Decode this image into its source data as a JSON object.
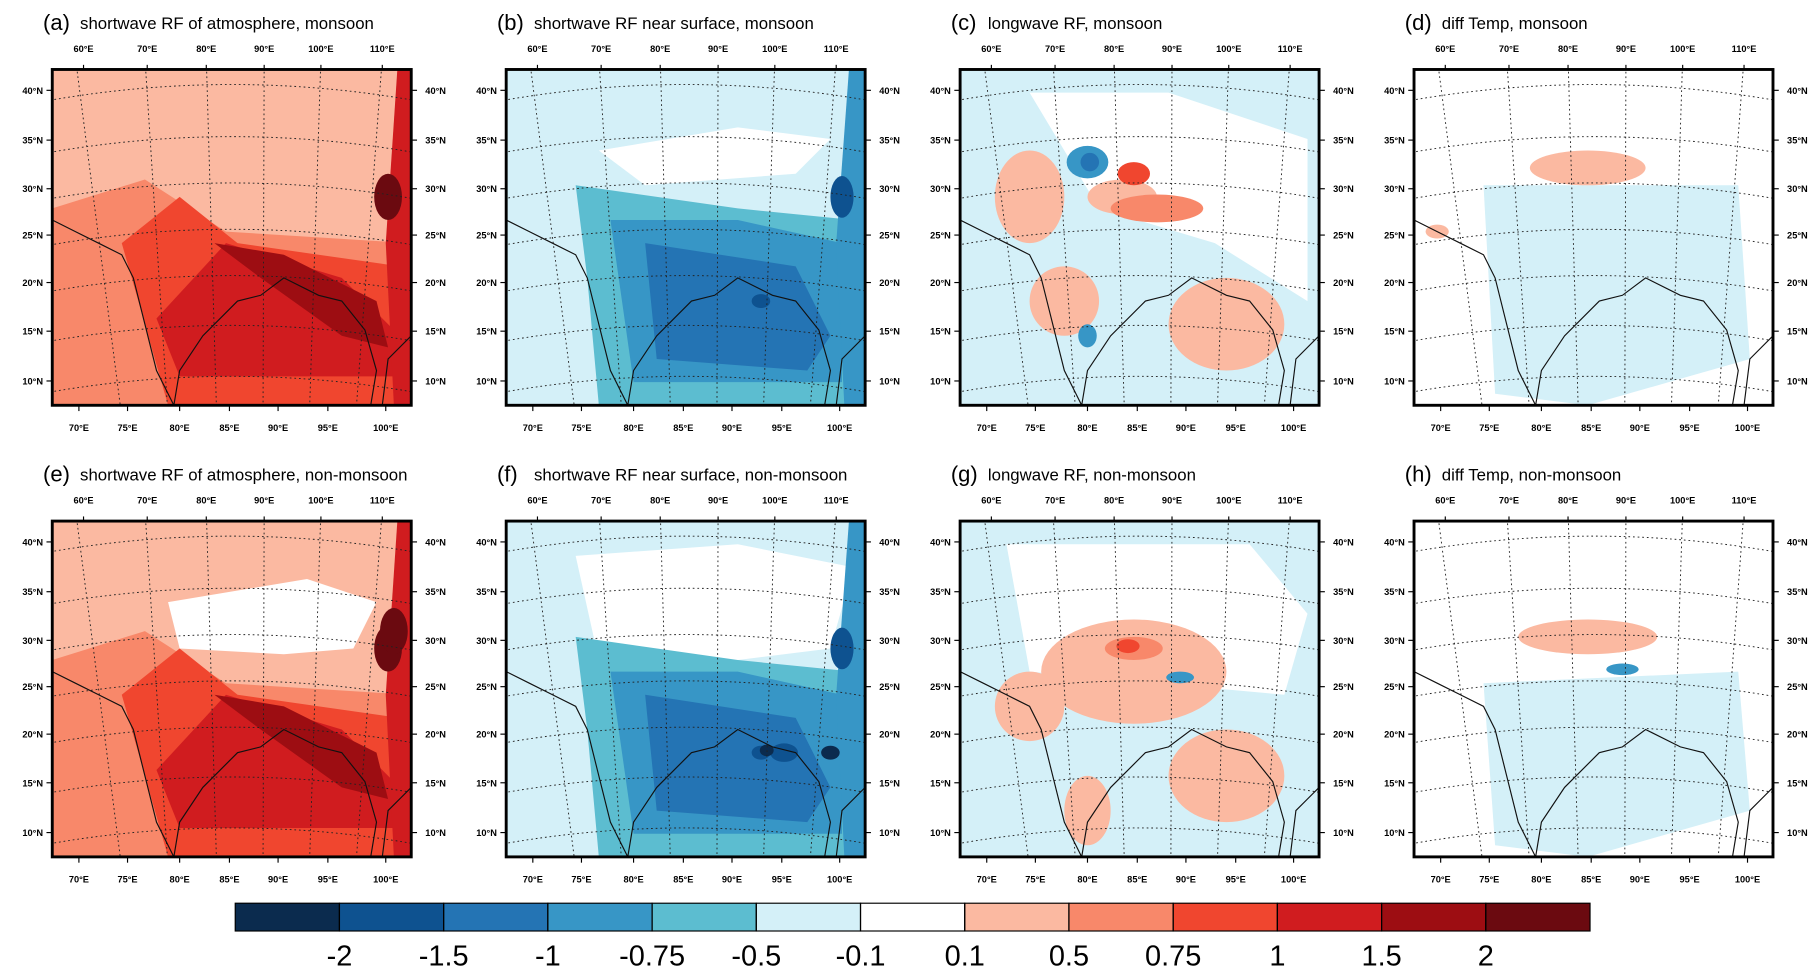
{
  "panels": [
    {
      "label": "(a)",
      "title": "shortwave RF of atmosphere, monsoon"
    },
    {
      "label": "(b)",
      "title": "shortwave RF near surface, monsoon"
    },
    {
      "label": "(c)",
      "title": "longwave RF, monsoon"
    },
    {
      "label": "(d)",
      "title": "diff Temp, monsoon"
    },
    {
      "label": "(e)",
      "title": "shortwave RF of atmosphere, non-monsoon"
    },
    {
      "label": "(f)",
      "title": "shortwave RF near surface, non-monsoon"
    },
    {
      "label": "(g)",
      "title": "longwave RF, non-monsoon"
    },
    {
      "label": "(h)",
      "title": "diff Temp, non-monsoon"
    }
  ],
  "axes": {
    "top_lon": [
      "60°E",
      "70°E",
      "80°E",
      "90°E",
      "100°E",
      "110°E"
    ],
    "bottom_lon": [
      "70°E",
      "75°E",
      "80°E",
      "85°E",
      "90°E",
      "95°E",
      "100°E"
    ],
    "lat": [
      "40°N",
      "35°N",
      "30°N",
      "25°N",
      "20°N",
      "15°N",
      "10°N"
    ]
  },
  "colorbar": {
    "levels": [
      -2,
      -1.5,
      -1,
      -0.75,
      -0.5,
      -0.1,
      0.1,
      0.5,
      0.75,
      1,
      1.5,
      2
    ],
    "colors": [
      "#0b2b4e",
      "#0e5290",
      "#2474b4",
      "#3796c6",
      "#5cbdd0",
      "#d4f0f8",
      "#ffffff",
      "#fbb9a1",
      "#f8886a",
      "#f0462f",
      "#d01c1f",
      "#9d0d12",
      "#6b0a10"
    ]
  }
}
